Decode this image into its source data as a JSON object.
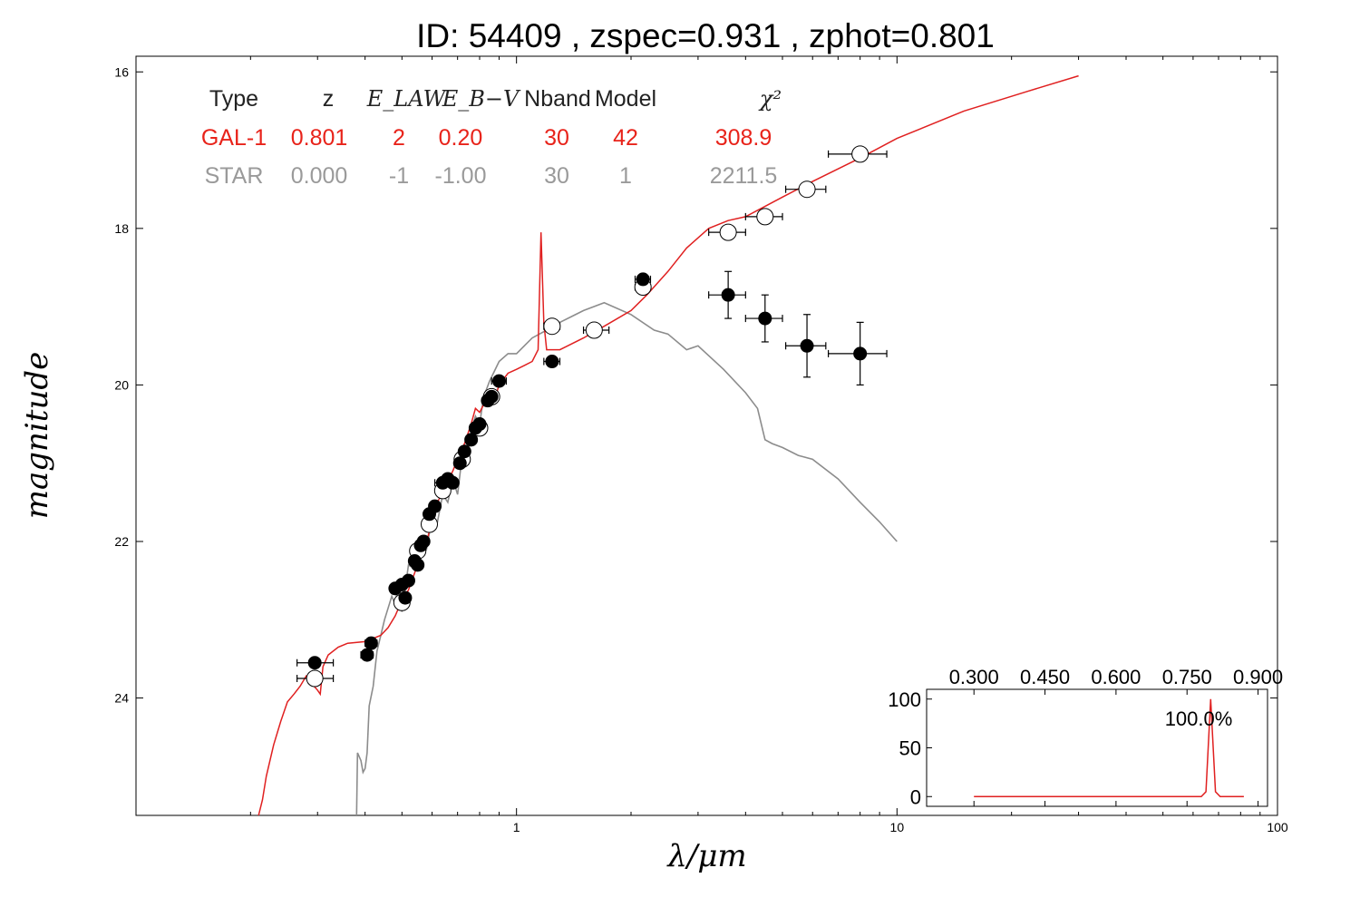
{
  "chart_data": {
    "type": "scatter",
    "title": "ID:  54409 , zspec=0.931 , zphot=0.801",
    "xlabel": "λ/μm",
    "ylabel": "magnitude",
    "x_scale": "log",
    "xlim": [
      0.1,
      100
    ],
    "ylim": [
      25.5,
      15.8
    ],
    "y_inverted": true,
    "x_ticks": [
      "1",
      "10",
      "100"
    ],
    "y_ticks": [
      "16",
      "18",
      "20",
      "22",
      "24"
    ],
    "table": {
      "headers": [
        "Type",
        "z",
        "E_LAW",
        "E_B−V",
        "Nband",
        "Model",
        "χ²"
      ],
      "rows": [
        {
          "cells": [
            "GAL-1",
            "0.801",
            "2",
            "0.20",
            "30",
            "42",
            "308.9"
          ],
          "color": "#e8231a"
        },
        {
          "cells": [
            "STAR",
            "0.000",
            "-1",
            "-1.00",
            "30",
            "1",
            "2211.5"
          ],
          "color": "#9a9a9a"
        }
      ]
    },
    "series": [
      {
        "name": "GAL-1",
        "color": "#e02020",
        "points": [
          [
            0.21,
            25.5
          ],
          [
            0.215,
            25.3
          ],
          [
            0.22,
            25.0
          ],
          [
            0.23,
            24.6
          ],
          [
            0.24,
            24.3
          ],
          [
            0.25,
            24.05
          ],
          [
            0.26,
            23.95
          ],
          [
            0.27,
            23.85
          ],
          [
            0.28,
            23.72
          ],
          [
            0.29,
            23.82
          ],
          [
            0.3,
            23.9
          ],
          [
            0.305,
            23.95
          ],
          [
            0.31,
            23.6
          ],
          [
            0.32,
            23.45
          ],
          [
            0.34,
            23.35
          ],
          [
            0.36,
            23.3
          ],
          [
            0.4,
            23.28
          ],
          [
            0.44,
            23.2
          ],
          [
            0.46,
            23.1
          ],
          [
            0.48,
            22.95
          ],
          [
            0.5,
            22.75
          ],
          [
            0.52,
            22.62
          ],
          [
            0.54,
            22.4
          ],
          [
            0.56,
            22.2
          ],
          [
            0.58,
            22.0
          ],
          [
            0.6,
            21.75
          ],
          [
            0.62,
            21.5
          ],
          [
            0.65,
            21.3
          ],
          [
            0.68,
            21.1
          ],
          [
            0.7,
            20.95
          ],
          [
            0.73,
            20.75
          ],
          [
            0.76,
            20.5
          ],
          [
            0.78,
            20.3
          ],
          [
            0.8,
            20.35
          ],
          [
            0.82,
            20.25
          ],
          [
            0.85,
            20.15
          ],
          [
            0.88,
            20.15
          ],
          [
            0.9,
            20.0
          ],
          [
            0.95,
            19.85
          ],
          [
            1.0,
            19.8
          ],
          [
            1.05,
            19.75
          ],
          [
            1.1,
            19.7
          ],
          [
            1.14,
            19.55
          ],
          [
            1.16,
            18.05
          ],
          [
            1.18,
            19.2
          ],
          [
            1.2,
            19.55
          ],
          [
            1.3,
            19.55
          ],
          [
            1.5,
            19.4
          ],
          [
            1.7,
            19.25
          ],
          [
            2.0,
            19.05
          ],
          [
            2.2,
            18.85
          ],
          [
            2.5,
            18.55
          ],
          [
            2.8,
            18.25
          ],
          [
            3.2,
            18.0
          ],
          [
            3.6,
            17.9
          ],
          [
            4.0,
            17.85
          ],
          [
            5.0,
            17.6
          ],
          [
            6.0,
            17.4
          ],
          [
            8.0,
            17.1
          ],
          [
            10,
            16.85
          ],
          [
            15,
            16.5
          ],
          [
            22,
            16.25
          ],
          [
            30,
            16.05
          ]
        ]
      },
      {
        "name": "STAR",
        "color": "#8c8c8c",
        "points": [
          [
            0.38,
            25.5
          ],
          [
            0.382,
            24.7
          ],
          [
            0.39,
            24.8
          ],
          [
            0.395,
            24.95
          ],
          [
            0.4,
            24.9
          ],
          [
            0.405,
            24.7
          ],
          [
            0.41,
            24.1
          ],
          [
            0.42,
            23.85
          ],
          [
            0.43,
            23.4
          ],
          [
            0.44,
            23.2
          ],
          [
            0.45,
            23.0
          ],
          [
            0.46,
            22.85
          ],
          [
            0.47,
            22.7
          ],
          [
            0.48,
            22.8
          ],
          [
            0.49,
            22.5
          ],
          [
            0.5,
            22.9
          ],
          [
            0.51,
            22.6
          ],
          [
            0.52,
            22.3
          ],
          [
            0.54,
            22.35
          ],
          [
            0.56,
            22.0
          ],
          [
            0.58,
            22.1
          ],
          [
            0.6,
            21.7
          ],
          [
            0.62,
            21.75
          ],
          [
            0.64,
            21.4
          ],
          [
            0.66,
            21.5
          ],
          [
            0.68,
            21.2
          ],
          [
            0.7,
            21.4
          ],
          [
            0.72,
            20.9
          ],
          [
            0.74,
            21.0
          ],
          [
            0.76,
            20.6
          ],
          [
            0.78,
            20.4
          ],
          [
            0.8,
            20.5
          ],
          [
            0.82,
            20.15
          ],
          [
            0.85,
            19.95
          ],
          [
            0.9,
            19.7
          ],
          [
            0.95,
            19.6
          ],
          [
            1.0,
            19.6
          ],
          [
            1.1,
            19.4
          ],
          [
            1.2,
            19.3
          ],
          [
            1.3,
            19.2
          ],
          [
            1.5,
            19.05
          ],
          [
            1.7,
            18.95
          ],
          [
            2.0,
            19.1
          ],
          [
            2.3,
            19.3
          ],
          [
            2.5,
            19.35
          ],
          [
            2.8,
            19.55
          ],
          [
            3.0,
            19.5
          ],
          [
            3.5,
            19.8
          ],
          [
            4.0,
            20.1
          ],
          [
            4.3,
            20.3
          ],
          [
            4.5,
            20.7
          ],
          [
            4.7,
            20.75
          ],
          [
            5.0,
            20.8
          ],
          [
            5.5,
            20.9
          ],
          [
            6.0,
            20.95
          ],
          [
            7.0,
            21.2
          ],
          [
            8.0,
            21.5
          ],
          [
            9.0,
            21.75
          ],
          [
            10,
            22.0
          ]
        ]
      }
    ],
    "observed": [
      {
        "x": 0.295,
        "y": 23.55,
        "xerr_lo": 0.265,
        "xerr_hi": 0.33
      },
      {
        "x": 0.405,
        "y": 23.45,
        "xerr_lo": 0.39,
        "xerr_hi": 0.42
      },
      {
        "x": 0.415,
        "y": 23.3,
        "xerr_lo": 0.4,
        "xerr_hi": 0.43
      },
      {
        "x": 0.48,
        "y": 22.6,
        "xerr_lo": 0.465,
        "xerr_hi": 0.495
      },
      {
        "x": 0.5,
        "y": 22.55,
        "xerr_lo": 0.49,
        "xerr_hi": 0.51
      },
      {
        "x": 0.51,
        "y": 22.72,
        "xerr_lo": 0.5,
        "xerr_hi": 0.52
      },
      {
        "x": 0.52,
        "y": 22.5,
        "xerr_lo": 0.51,
        "xerr_hi": 0.53
      },
      {
        "x": 0.54,
        "y": 22.25,
        "xerr_lo": 0.53,
        "xerr_hi": 0.55
      },
      {
        "x": 0.55,
        "y": 22.3,
        "xerr_lo": 0.54,
        "xerr_hi": 0.56
      },
      {
        "x": 0.56,
        "y": 22.05,
        "xerr_lo": 0.55,
        "xerr_hi": 0.57
      },
      {
        "x": 0.57,
        "y": 22.0,
        "xerr_lo": 0.56,
        "xerr_hi": 0.58
      },
      {
        "x": 0.59,
        "y": 21.65,
        "xerr_lo": 0.58,
        "xerr_hi": 0.6
      },
      {
        "x": 0.61,
        "y": 21.55,
        "xerr_lo": 0.6,
        "xerr_hi": 0.62
      },
      {
        "x": 0.64,
        "y": 21.25,
        "xerr_lo": 0.61,
        "xerr_hi": 0.67
      },
      {
        "x": 0.66,
        "y": 21.2,
        "xerr_lo": 0.64,
        "xerr_hi": 0.68
      },
      {
        "x": 0.68,
        "y": 21.25,
        "xerr_lo": 0.67,
        "xerr_hi": 0.69
      },
      {
        "x": 0.71,
        "y": 21.0,
        "xerr_lo": 0.7,
        "xerr_hi": 0.72
      },
      {
        "x": 0.73,
        "y": 20.85,
        "xerr_lo": 0.72,
        "xerr_hi": 0.74
      },
      {
        "x": 0.76,
        "y": 20.7,
        "xerr_lo": 0.75,
        "xerr_hi": 0.77
      },
      {
        "x": 0.78,
        "y": 20.55,
        "xerr_lo": 0.77,
        "xerr_hi": 0.79
      },
      {
        "x": 0.8,
        "y": 20.5,
        "xerr_lo": 0.79,
        "xerr_hi": 0.81
      },
      {
        "x": 0.84,
        "y": 20.2,
        "xerr_lo": 0.82,
        "xerr_hi": 0.86
      },
      {
        "x": 0.86,
        "y": 20.15,
        "xerr_lo": 0.84,
        "xerr_hi": 0.88
      },
      {
        "x": 0.9,
        "y": 19.95,
        "xerr_lo": 0.86,
        "xerr_hi": 0.94
      },
      {
        "x": 1.24,
        "y": 19.7,
        "xerr_lo": 1.18,
        "xerr_hi": 1.3
      },
      {
        "x": 2.15,
        "y": 18.65,
        "xerr_lo": 2.05,
        "xerr_hi": 2.25
      },
      {
        "x": 3.6,
        "y": 18.85,
        "xerr_lo": 3.2,
        "xerr_hi": 4.0,
        "yerr": 0.3
      },
      {
        "x": 4.5,
        "y": 19.15,
        "xerr_lo": 4.0,
        "xerr_hi": 5.0,
        "yerr": 0.3
      },
      {
        "x": 5.8,
        "y": 19.5,
        "xerr_lo": 5.1,
        "xerr_hi": 6.5,
        "yerr": 0.4
      },
      {
        "x": 8.0,
        "y": 19.6,
        "xerr_lo": 6.6,
        "xerr_hi": 9.4,
        "yerr": 0.4
      }
    ],
    "model": [
      {
        "x": 0.295,
        "y": 23.75,
        "xerr_lo": 0.265,
        "xerr_hi": 0.33
      },
      {
        "x": 0.5,
        "y": 22.78
      },
      {
        "x": 0.55,
        "y": 22.12
      },
      {
        "x": 0.59,
        "y": 21.78
      },
      {
        "x": 0.64,
        "y": 21.35
      },
      {
        "x": 0.72,
        "y": 20.95
      },
      {
        "x": 0.8,
        "y": 20.55
      },
      {
        "x": 0.86,
        "y": 20.15
      },
      {
        "x": 1.24,
        "y": 19.25,
        "xerr_lo": 1.18,
        "xerr_hi": 1.3
      },
      {
        "x": 1.6,
        "y": 19.3,
        "xerr_lo": 1.5,
        "xerr_hi": 1.75
      },
      {
        "x": 2.15,
        "y": 18.75,
        "xerr_lo": 2.05,
        "xerr_hi": 2.25
      },
      {
        "x": 3.6,
        "y": 18.05,
        "xerr_lo": 3.2,
        "xerr_hi": 4.0
      },
      {
        "x": 4.5,
        "y": 17.85,
        "xerr_lo": 4.0,
        "xerr_hi": 5.0
      },
      {
        "x": 5.8,
        "y": 17.5,
        "xerr_lo": 5.1,
        "xerr_hi": 6.5
      },
      {
        "x": 8.0,
        "y": 17.05,
        "xerr_lo": 6.6,
        "xerr_hi": 9.4
      }
    ],
    "inset": {
      "label": "100.0%",
      "x_ticks": [
        "0.300",
        "0.450",
        "0.600",
        "0.750",
        "0.900"
      ],
      "y_ticks": [
        "100",
        "50",
        "0"
      ],
      "xlim": [
        0.2,
        0.92
      ],
      "ylim": [
        -10,
        110
      ],
      "color": "#e02020",
      "points": [
        [
          0.3,
          0
        ],
        [
          0.78,
          0
        ],
        [
          0.79,
          5
        ],
        [
          0.8,
          100
        ],
        [
          0.81,
          5
        ],
        [
          0.82,
          0
        ],
        [
          0.87,
          0
        ]
      ]
    }
  }
}
